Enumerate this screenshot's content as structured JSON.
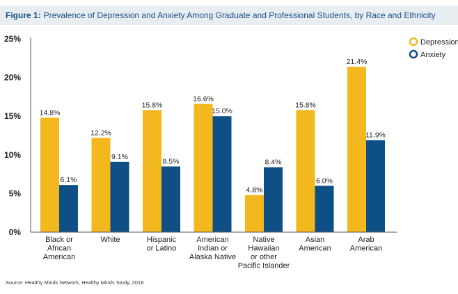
{
  "header": {
    "figure_label": "Figure 1:",
    "title_text": "Prevalence of Depression and Anxiety Among Graduate and Professional Students, by Race and Ethnicity"
  },
  "source": "Source: Healthy Minds Network, Healthy Minds Study, 2018",
  "chart_data": {
    "type": "bar",
    "title": "Prevalence of Depression and Anxiety Among Graduate and Professional Students, by Race and Ethnicity",
    "xlabel": "",
    "ylabel": "",
    "ylim": [
      0,
      25
    ],
    "yticks": [
      0,
      5,
      10,
      15,
      20,
      25
    ],
    "ytick_labels": [
      "0%",
      "5%",
      "10%",
      "15%",
      "20%",
      "25%"
    ],
    "grid": false,
    "legend_position": "top-right",
    "categories": [
      [
        "Black or",
        "African",
        "American"
      ],
      [
        "White"
      ],
      [
        "Hispanic",
        "or Latino"
      ],
      [
        "American",
        "Indian or",
        "Alaska Native"
      ],
      [
        "Native",
        "Hawaiian",
        "or other",
        "Pacific Islander"
      ],
      [
        "Asian",
        "American"
      ],
      [
        "Arab",
        "American"
      ]
    ],
    "series": [
      {
        "name": "Depression",
        "color": "#f2b81e",
        "values": [
          14.8,
          12.2,
          15.8,
          16.6,
          4.8,
          15.8,
          21.4
        ],
        "labels": [
          "14.8%",
          "12.2%",
          "15.8%",
          "16.6%",
          "4.8%",
          "15.8%",
          "21.4%"
        ]
      },
      {
        "name": "Anxiety",
        "color": "#0e4f86",
        "values": [
          6.1,
          9.1,
          8.5,
          15.0,
          8.4,
          6.0,
          11.9
        ],
        "labels": [
          "6.1%",
          "9.1%",
          "8.5%",
          "15.0%",
          "8.4%",
          "6.0%",
          "11.9%"
        ]
      }
    ]
  }
}
